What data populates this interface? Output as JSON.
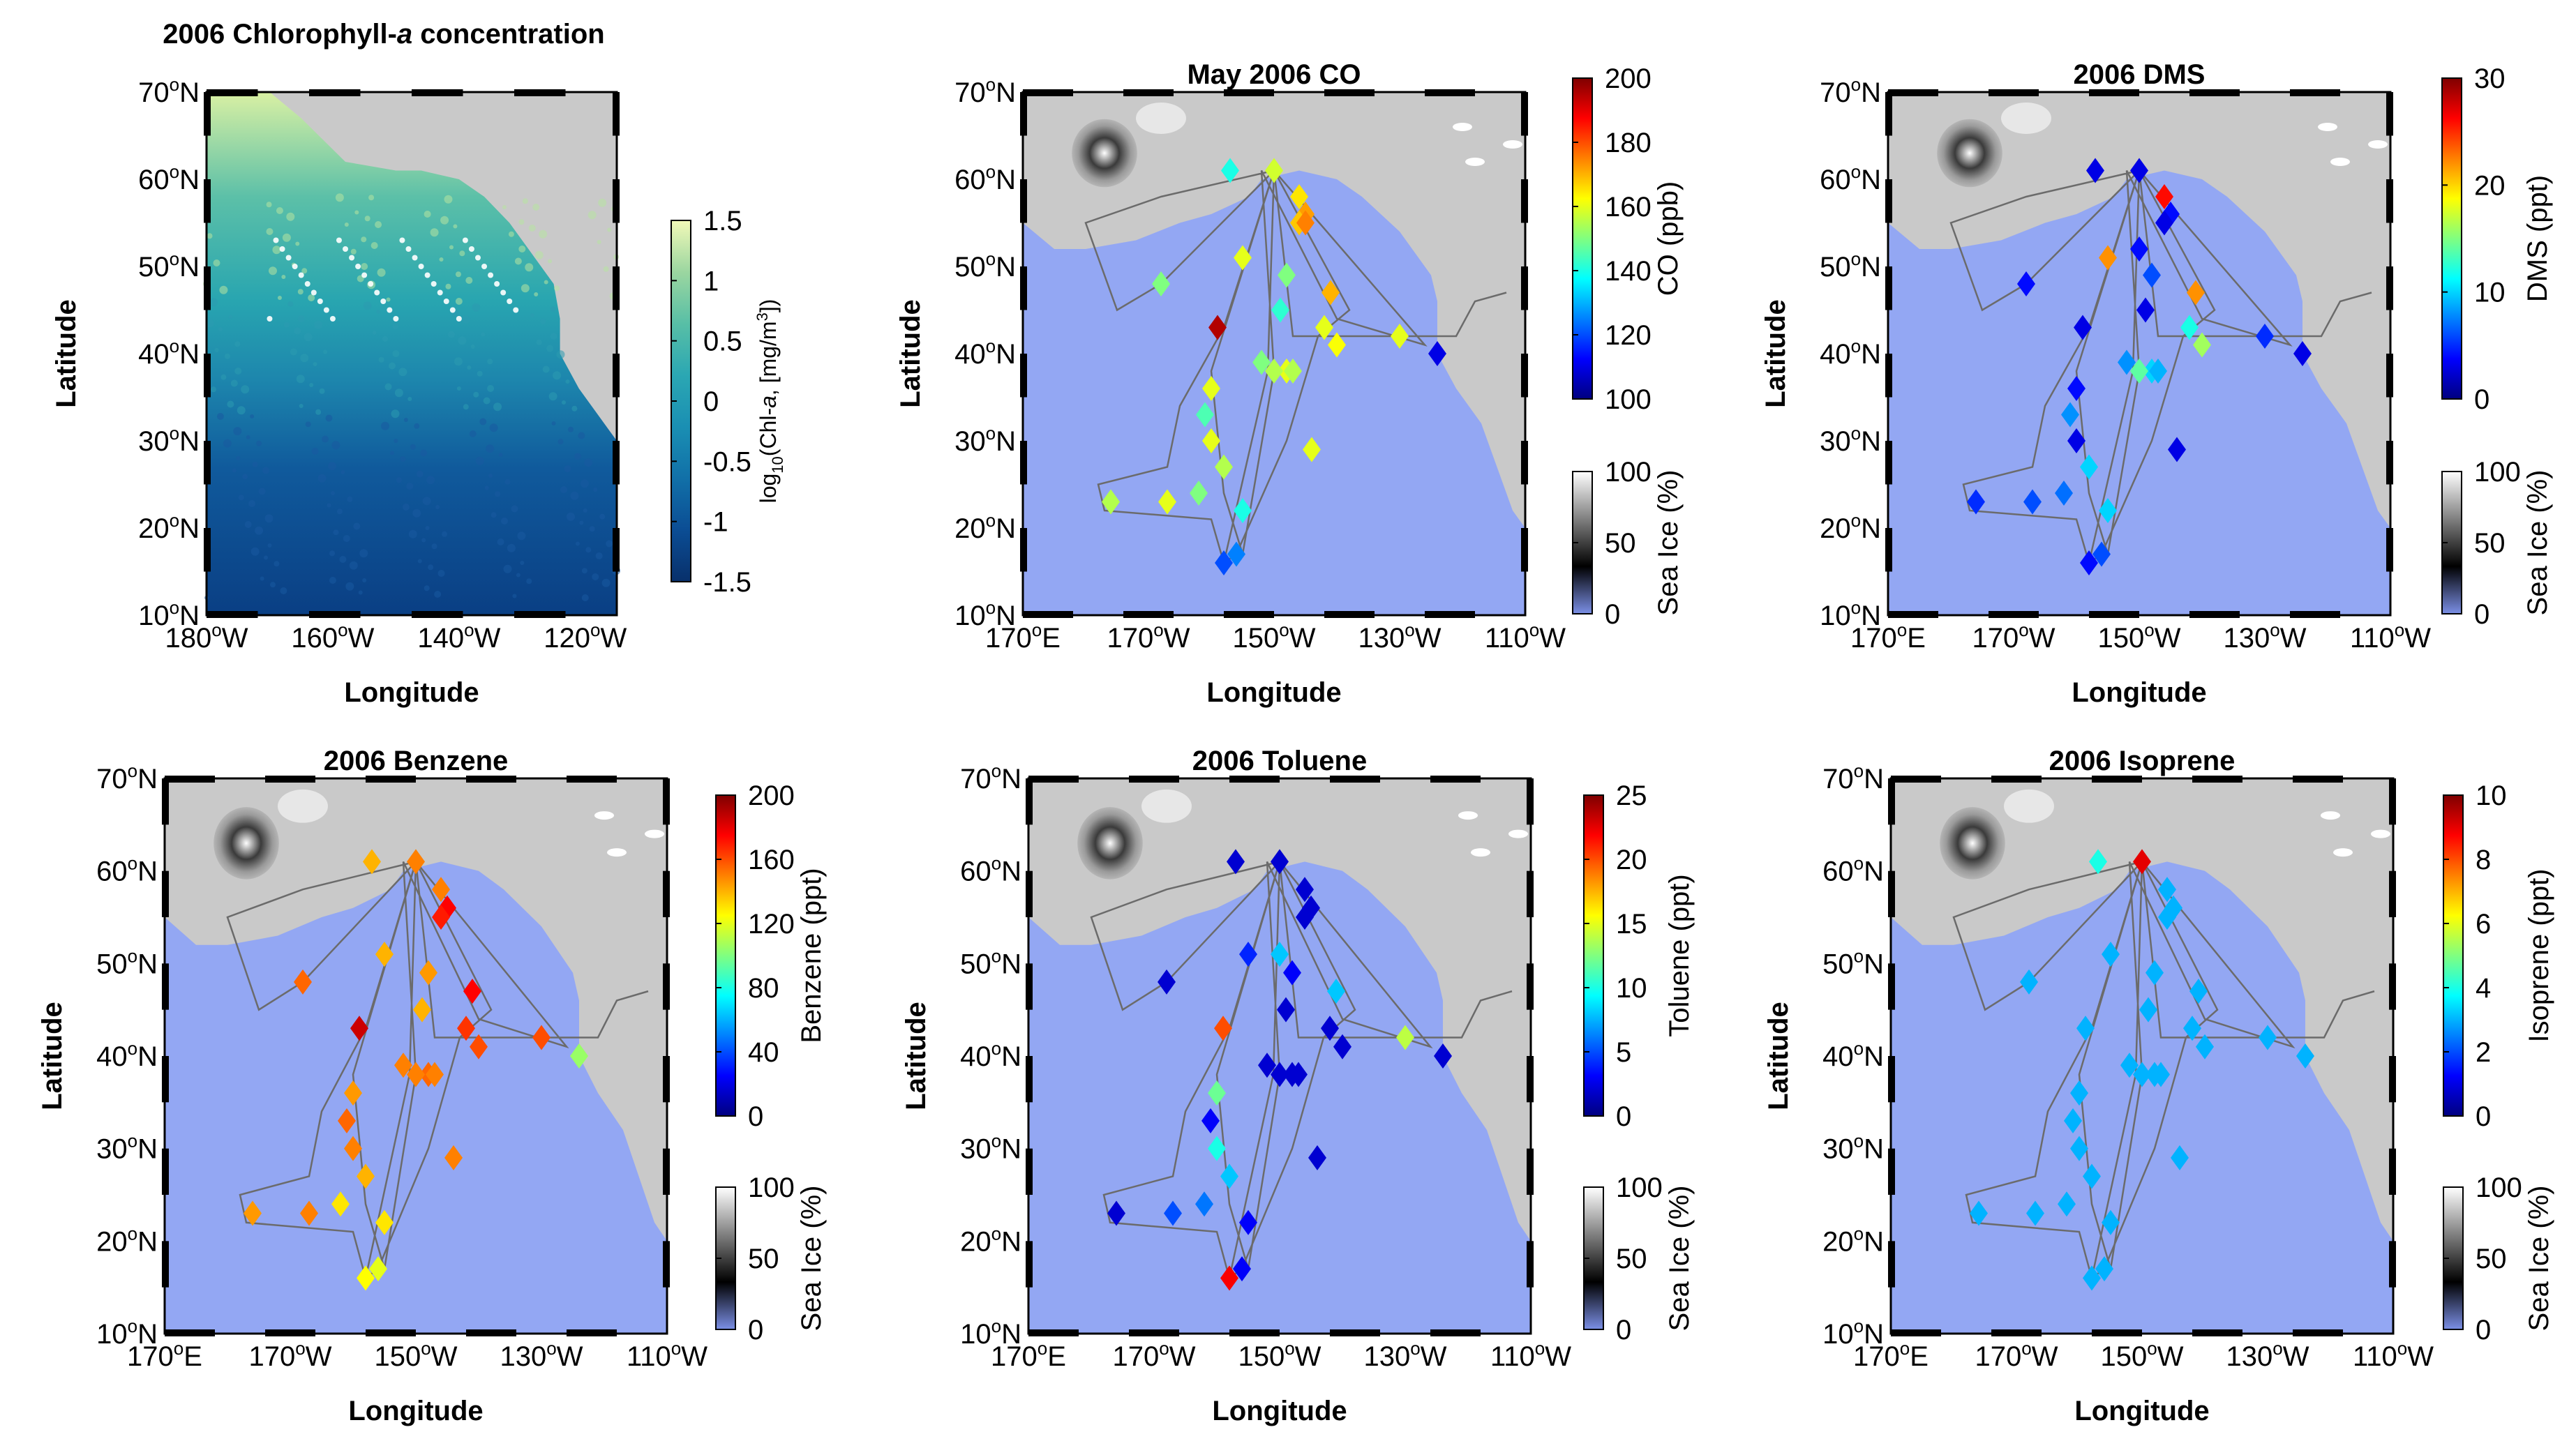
{
  "figure": {
    "panel_count": 6
  },
  "colors": {
    "ocean": "#93a7f3",
    "land": "#c9c9c9",
    "track": "#6b6b6b",
    "frame": "#000000",
    "chl_scale": [
      "#08306b",
      "#0b4d94",
      "#1170a8",
      "#1a8fb3",
      "#2ba7b3",
      "#58bfa6",
      "#9bd6a0",
      "#f2f9b8"
    ],
    "jet_scale": [
      "#00007f",
      "#0000ff",
      "#0080ff",
      "#00ffff",
      "#80ff80",
      "#ffff00",
      "#ff8000",
      "#ff0000",
      "#7f0000"
    ],
    "ice_scale": [
      "#7b8fe6",
      "#000000",
      "#808080",
      "#ffffff"
    ]
  },
  "chart_data": [
    {
      "type": "heatmap",
      "title": "2006 Chlorophyll-a concentration",
      "title_main": "2006 Chlorophyll-",
      "title_italic": "a",
      "title_tail": " concentration",
      "xlabel": "Longitude",
      "ylabel": "Latitude",
      "xticks": [
        "180",
        "160",
        "140",
        "120"
      ],
      "xtick_suffix": "W",
      "yticks": [
        "10",
        "20",
        "30",
        "40",
        "50",
        "60",
        "70"
      ],
      "ytick_suffix": "N",
      "xlim": [
        -180,
        -115
      ],
      "ylim": [
        10,
        70
      ],
      "colorbar": {
        "label": "log10(Chl-a, [mg/m3])",
        "label_pre": "log",
        "label_sub": "10",
        "label_post": "(Chl-",
        "label_italic": "a",
        "label_tail": ", [mg/m",
        "label_sup": "3",
        "label_end": "])",
        "ticks": [
          "1.5",
          "1",
          "0.5",
          "0",
          "-0.5",
          "-1",
          "-1.5"
        ],
        "range": [
          -1.5,
          1.5
        ]
      }
    },
    {
      "type": "scatter",
      "title": "May 2006 CO",
      "xlabel": "Longitude",
      "ylabel": "Latitude",
      "xticks": [
        "170E",
        "170W",
        "150W",
        "130W",
        "110W"
      ],
      "yticks": [
        "10",
        "20",
        "30",
        "40",
        "50",
        "60",
        "70"
      ],
      "xlim": [
        170,
        250
      ],
      "ylim": [
        10,
        70
      ],
      "colorbar": {
        "label": "CO (ppb)",
        "ticks": [
          "200",
          "180",
          "160",
          "140",
          "120",
          "100"
        ],
        "range": [
          100,
          200
        ]
      },
      "ice_colorbar": {
        "label": "Sea Ice (%)",
        "ticks": [
          "100",
          "50",
          "0"
        ],
        "range": [
          0,
          100
        ]
      },
      "points": [
        [
          -157,
          61,
          140
        ],
        [
          -150,
          61,
          158
        ],
        [
          -146,
          58,
          165
        ],
        [
          -145,
          56,
          172
        ],
        [
          -146,
          55,
          168
        ],
        [
          -148,
          49,
          150
        ],
        [
          -149,
          45,
          142
        ],
        [
          -141,
          47,
          170
        ],
        [
          -142,
          43,
          160
        ],
        [
          -140,
          41,
          162
        ],
        [
          -148,
          38,
          160
        ],
        [
          -150,
          38,
          155
        ],
        [
          -147,
          38,
          155
        ],
        [
          -159,
          43,
          195
        ],
        [
          -160,
          36,
          160
        ],
        [
          -160,
          30,
          160
        ],
        [
          -161,
          33,
          145
        ],
        [
          -158,
          27,
          155
        ],
        [
          -162,
          24,
          150
        ],
        [
          -155,
          22,
          140
        ],
        [
          -167,
          23,
          160
        ],
        [
          -176,
          23,
          155
        ],
        [
          -158,
          16,
          120
        ],
        [
          -156,
          17,
          125
        ],
        [
          -144,
          29,
          160
        ],
        [
          -152,
          39,
          150
        ],
        [
          -155,
          51,
          160
        ],
        [
          -168,
          48,
          150
        ],
        [
          -130,
          42,
          160
        ],
        [
          -124,
          40,
          110
        ],
        [
          -145,
          55,
          175
        ]
      ]
    },
    {
      "type": "scatter",
      "title": "2006 DMS",
      "xlabel": "Longitude",
      "ylabel": "Latitude",
      "xticks": [
        "170E",
        "170W",
        "150W",
        "130W",
        "110W"
      ],
      "yticks": [
        "10",
        "20",
        "30",
        "40",
        "50",
        "60",
        "70"
      ],
      "xlim": [
        170,
        250
      ],
      "ylim": [
        10,
        70
      ],
      "colorbar": {
        "label": "DMS (ppt)",
        "ticks": [
          "30",
          "20",
          "10",
          "0"
        ],
        "range": [
          0,
          30
        ]
      },
      "ice_colorbar": {
        "label": "Sea Ice (%)",
        "ticks": [
          "100",
          "50",
          "0"
        ],
        "range": [
          0,
          100
        ]
      },
      "points": [
        [
          -157,
          61,
          3
        ],
        [
          -150,
          61,
          3
        ],
        [
          -146,
          58,
          26
        ],
        [
          -145,
          56,
          4
        ],
        [
          -146,
          55,
          3
        ],
        [
          -148,
          49,
          6
        ],
        [
          -149,
          45,
          3
        ],
        [
          -141,
          47,
          22
        ],
        [
          -142,
          43,
          12
        ],
        [
          -140,
          41,
          16
        ],
        [
          -148,
          38,
          10
        ],
        [
          -150,
          38,
          14
        ],
        [
          -147,
          38,
          9
        ],
        [
          -159,
          43,
          3
        ],
        [
          -160,
          36,
          4
        ],
        [
          -160,
          30,
          3
        ],
        [
          -161,
          33,
          8
        ],
        [
          -158,
          27,
          10
        ],
        [
          -162,
          24,
          7
        ],
        [
          -155,
          22,
          10
        ],
        [
          -167,
          23,
          6
        ],
        [
          -176,
          23,
          5
        ],
        [
          -158,
          16,
          4
        ],
        [
          -156,
          17,
          6
        ],
        [
          -144,
          29,
          3
        ],
        [
          -152,
          39,
          8
        ],
        [
          -155,
          51,
          22
        ],
        [
          -168,
          48,
          4
        ],
        [
          -130,
          42,
          5
        ],
        [
          -124,
          40,
          3
        ],
        [
          -150,
          52,
          4
        ]
      ]
    },
    {
      "type": "scatter",
      "title": "2006 Benzene",
      "xlabel": "Longitude",
      "ylabel": "Latitude",
      "xticks": [
        "170E",
        "170W",
        "150W",
        "130W",
        "110W"
      ],
      "yticks": [
        "10",
        "20",
        "30",
        "40",
        "50",
        "60",
        "70"
      ],
      "xlim": [
        170,
        250
      ],
      "ylim": [
        10,
        70
      ],
      "colorbar": {
        "label": "Benzene (ppt)",
        "ticks": [
          "200",
          "160",
          "120",
          "80",
          "40",
          "0"
        ],
        "range": [
          0,
          200
        ]
      },
      "ice_colorbar": {
        "label": "Sea Ice (%)",
        "ticks": [
          "100",
          "50",
          "0"
        ],
        "range": [
          0,
          100
        ]
      },
      "points": [
        [
          -157,
          61,
          140
        ],
        [
          -150,
          61,
          150
        ],
        [
          -146,
          58,
          150
        ],
        [
          -145,
          56,
          175
        ],
        [
          -146,
          55,
          170
        ],
        [
          -148,
          49,
          145
        ],
        [
          -149,
          45,
          140
        ],
        [
          -141,
          47,
          175
        ],
        [
          -142,
          43,
          165
        ],
        [
          -140,
          41,
          160
        ],
        [
          -148,
          38,
          155
        ],
        [
          -150,
          38,
          150
        ],
        [
          -147,
          38,
          150
        ],
        [
          -159,
          43,
          185
        ],
        [
          -160,
          36,
          145
        ],
        [
          -160,
          30,
          150
        ],
        [
          -161,
          33,
          155
        ],
        [
          -158,
          27,
          140
        ],
        [
          -162,
          24,
          130
        ],
        [
          -155,
          22,
          130
        ],
        [
          -167,
          23,
          150
        ],
        [
          -176,
          23,
          145
        ],
        [
          -158,
          16,
          125
        ],
        [
          -156,
          17,
          120
        ],
        [
          -144,
          29,
          150
        ],
        [
          -152,
          39,
          150
        ],
        [
          -155,
          51,
          140
        ],
        [
          -168,
          48,
          155
        ],
        [
          -130,
          42,
          160
        ],
        [
          -124,
          40,
          105
        ]
      ]
    },
    {
      "type": "scatter",
      "title": "2006 Toluene",
      "xlabel": "Longitude",
      "ylabel": "Latitude",
      "xticks": [
        "170E",
        "170W",
        "150W",
        "130W",
        "110W"
      ],
      "yticks": [
        "10",
        "20",
        "30",
        "40",
        "50",
        "60",
        "70"
      ],
      "xlim": [
        170,
        250
      ],
      "ylim": [
        10,
        70
      ],
      "colorbar": {
        "label": "Toluene (ppt)",
        "ticks": [
          "25",
          "20",
          "15",
          "10",
          "5",
          "0"
        ],
        "range": [
          0,
          25
        ]
      },
      "ice_colorbar": {
        "label": "Sea Ice (%)",
        "ticks": [
          "100",
          "50",
          "0"
        ],
        "range": [
          0,
          100
        ]
      },
      "points": [
        [
          -157,
          61,
          2
        ],
        [
          -150,
          61,
          2
        ],
        [
          -146,
          58,
          2
        ],
        [
          -145,
          56,
          2
        ],
        [
          -146,
          55,
          2
        ],
        [
          -148,
          49,
          3
        ],
        [
          -149,
          45,
          2
        ],
        [
          -141,
          47,
          8
        ],
        [
          -142,
          43,
          2
        ],
        [
          -140,
          41,
          2
        ],
        [
          -148,
          38,
          2
        ],
        [
          -150,
          38,
          2
        ],
        [
          -147,
          38,
          2
        ],
        [
          -159,
          43,
          20
        ],
        [
          -160,
          36,
          12
        ],
        [
          -160,
          30,
          10
        ],
        [
          -161,
          33,
          3
        ],
        [
          -158,
          27,
          8
        ],
        [
          -162,
          24,
          6
        ],
        [
          -155,
          22,
          3
        ],
        [
          -167,
          23,
          5
        ],
        [
          -176,
          23,
          2
        ],
        [
          -158,
          16,
          22
        ],
        [
          -156,
          17,
          3
        ],
        [
          -144,
          29,
          2
        ],
        [
          -152,
          39,
          2
        ],
        [
          -155,
          51,
          4
        ],
        [
          -168,
          48,
          2
        ],
        [
          -130,
          42,
          14
        ],
        [
          -124,
          40,
          2
        ],
        [
          -150,
          51,
          8
        ]
      ]
    },
    {
      "type": "scatter",
      "title": "2006 Isoprene",
      "xlabel": "Longitude",
      "ylabel": "Latitude",
      "xticks": [
        "170E",
        "170W",
        "150W",
        "130W",
        "110W"
      ],
      "yticks": [
        "10",
        "20",
        "30",
        "40",
        "50",
        "60",
        "70"
      ],
      "xlim": [
        170,
        250
      ],
      "ylim": [
        10,
        70
      ],
      "colorbar": {
        "label": "Isoprene (ppt)",
        "ticks": [
          "10",
          "8",
          "6",
          "4",
          "2",
          "0"
        ],
        "range": [
          0,
          10
        ]
      },
      "ice_colorbar": {
        "label": "Sea Ice (%)",
        "ticks": [
          "100",
          "50",
          "0"
        ],
        "range": [
          0,
          100
        ]
      },
      "points": [
        [
          -157,
          61,
          4
        ],
        [
          -150,
          61,
          9
        ],
        [
          -146,
          58,
          3
        ],
        [
          -145,
          56,
          3
        ],
        [
          -146,
          55,
          3
        ],
        [
          -148,
          49,
          3
        ],
        [
          -149,
          45,
          3
        ],
        [
          -141,
          47,
          3
        ],
        [
          -142,
          43,
          3
        ],
        [
          -140,
          41,
          3
        ],
        [
          -148,
          38,
          3
        ],
        [
          -150,
          38,
          3
        ],
        [
          -147,
          38,
          3
        ],
        [
          -159,
          43,
          3
        ],
        [
          -160,
          36,
          3
        ],
        [
          -160,
          30,
          3
        ],
        [
          -161,
          33,
          3
        ],
        [
          -158,
          27,
          3
        ],
        [
          -162,
          24,
          3
        ],
        [
          -155,
          22,
          3
        ],
        [
          -167,
          23,
          3
        ],
        [
          -176,
          23,
          3
        ],
        [
          -158,
          16,
          3
        ],
        [
          -156,
          17,
          3
        ],
        [
          -144,
          29,
          3
        ],
        [
          -152,
          39,
          3
        ],
        [
          -155,
          51,
          3
        ],
        [
          -168,
          48,
          3
        ],
        [
          -130,
          42,
          3
        ],
        [
          -124,
          40,
          3
        ]
      ]
    }
  ],
  "ship_track": [
    [
      -150,
      61
    ],
    [
      -158,
      43
    ],
    [
      -165,
      34
    ],
    [
      -167,
      27
    ],
    [
      -178,
      25
    ],
    [
      -177,
      22
    ],
    [
      -160,
      21
    ],
    [
      -158,
      16
    ],
    [
      -156,
      17
    ],
    [
      -148,
      30
    ],
    [
      -143,
      42
    ],
    [
      -138,
      45
    ],
    [
      -150,
      61
    ],
    [
      -147,
      42
    ],
    [
      -130,
      42
    ],
    [
      -125,
      42
    ],
    [
      -121,
      42
    ],
    [
      -118,
      46
    ],
    [
      -113,
      47
    ]
  ],
  "ship_track_2": [
    [
      -150,
      61
    ],
    [
      -168,
      58
    ],
    [
      -180,
      55
    ],
    [
      -175,
      45
    ],
    [
      -168,
      48
    ],
    [
      -150,
      61
    ],
    [
      -160,
      38
    ],
    [
      -158,
      24
    ],
    [
      -155,
      17
    ],
    [
      -150,
      38
    ],
    [
      -152,
      61
    ],
    [
      -140,
      44
    ],
    [
      -126,
      41
    ],
    [
      -150,
      61
    ],
    [
      -151,
      38
    ],
    [
      -158,
      16
    ]
  ]
}
